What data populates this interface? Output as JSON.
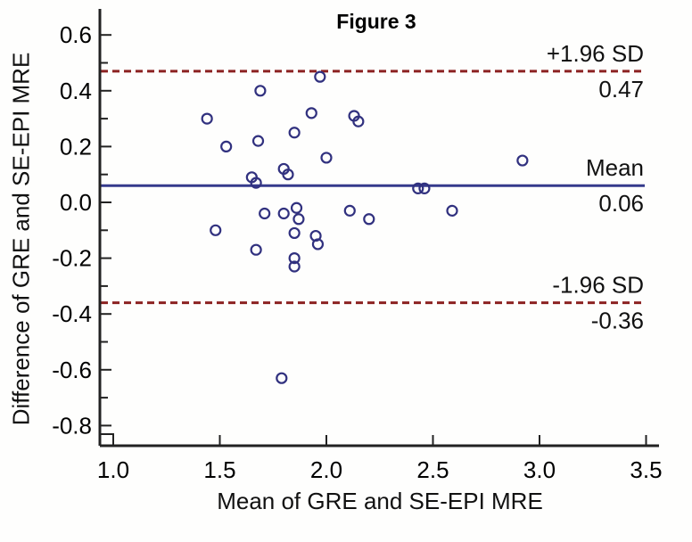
{
  "figure": {
    "title": "Figure 3"
  },
  "chart_data": {
    "type": "scatter",
    "title": "Figure 3",
    "xlabel": "Mean of GRE and SE-EPI MRE",
    "ylabel": "Difference of GRE and SE-EPI MRE",
    "xlim": [
      1.0,
      3.5
    ],
    "ylim": [
      -0.8,
      0.6
    ],
    "x_ticks": [
      1.0,
      1.5,
      2.0,
      2.5,
      3.0,
      3.5
    ],
    "y_ticks": [
      0.6,
      0.4,
      0.2,
      0.0,
      -0.2,
      -0.4,
      -0.6,
      -0.8
    ],
    "y_minor_ticks": [
      0.5,
      0.3,
      0.1,
      -0.1,
      -0.3,
      -0.5,
      -0.7
    ],
    "grid": false,
    "legend": "none",
    "marker": "open-circle",
    "point_color": "#31317f",
    "axis_color": "#222222",
    "points": [
      [
        1.44,
        0.3
      ],
      [
        1.53,
        0.2
      ],
      [
        1.69,
        0.4
      ],
      [
        1.68,
        0.22
      ],
      [
        1.85,
        0.25
      ],
      [
        1.97,
        0.45
      ],
      [
        1.93,
        0.32
      ],
      [
        2.0,
        0.16
      ],
      [
        2.13,
        0.31
      ],
      [
        2.15,
        0.29
      ],
      [
        1.8,
        0.12
      ],
      [
        1.82,
        0.1
      ],
      [
        1.65,
        0.09
      ],
      [
        1.67,
        0.07
      ],
      [
        1.48,
        -0.1
      ],
      [
        1.71,
        -0.04
      ],
      [
        1.8,
        -0.04
      ],
      [
        1.86,
        -0.02
      ],
      [
        1.87,
        -0.06
      ],
      [
        1.85,
        -0.11
      ],
      [
        1.95,
        -0.12
      ],
      [
        1.96,
        -0.15
      ],
      [
        1.67,
        -0.17
      ],
      [
        1.85,
        -0.2
      ],
      [
        1.85,
        -0.23
      ],
      [
        2.11,
        -0.03
      ],
      [
        2.2,
        -0.06
      ],
      [
        2.43,
        0.05
      ],
      [
        2.46,
        0.05
      ],
      [
        2.59,
        -0.03
      ],
      [
        2.92,
        0.15
      ],
      [
        1.79,
        -0.63
      ]
    ],
    "reference_lines": [
      {
        "name": "upper-loa",
        "label": "+1.96 SD",
        "value_label": "0.47",
        "value": 0.47,
        "style": "dashed",
        "color": "#8c2222"
      },
      {
        "name": "mean",
        "label": "Mean",
        "value_label": "0.06",
        "value": 0.06,
        "style": "solid",
        "color": "#353a8c"
      },
      {
        "name": "lower-loa",
        "label": "-1.96 SD",
        "value_label": "-0.36",
        "value": -0.36,
        "style": "dashed",
        "color": "#8c2222"
      }
    ]
  }
}
